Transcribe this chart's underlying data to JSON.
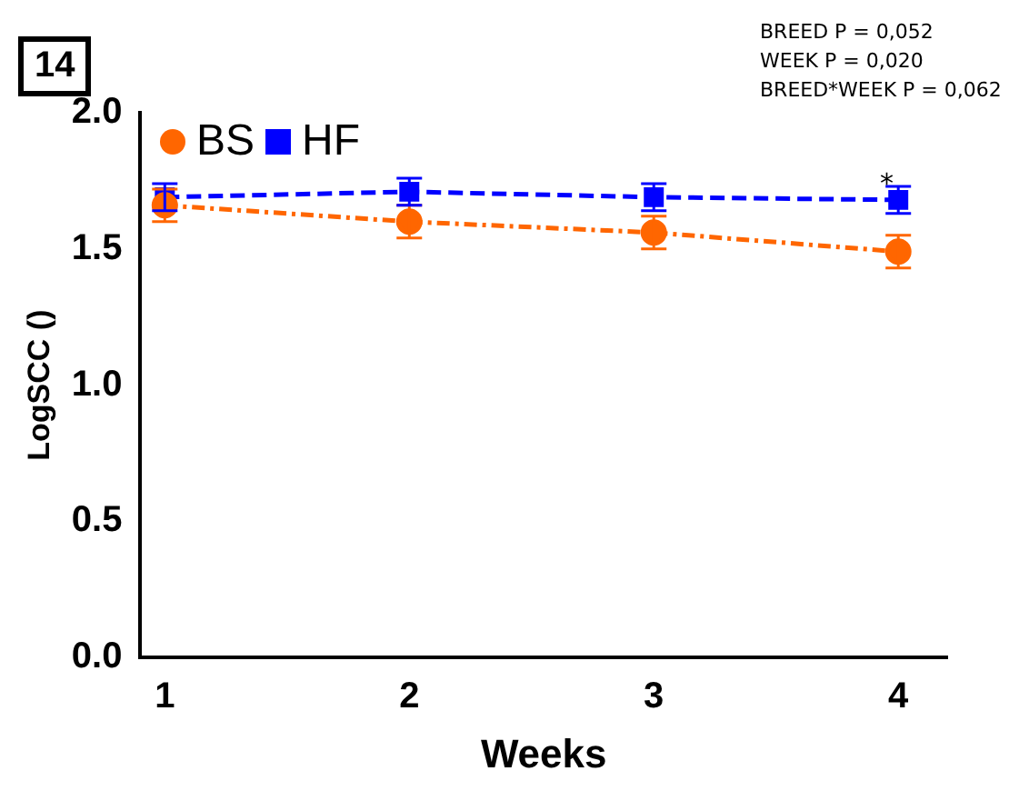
{
  "chart_data": {
    "type": "line",
    "xlabel": "Weeks",
    "ylabel": "LogSCC ()",
    "x": [
      1,
      2,
      3,
      4
    ],
    "xlim": [
      0.9,
      4.2
    ],
    "xticks": [
      1,
      2,
      3,
      4
    ],
    "ylim": [
      0,
      2.0
    ],
    "yticks": [
      {
        "value": 0,
        "label": "0.0"
      },
      {
        "value": 0.5,
        "label": "0.5"
      },
      {
        "value": 1,
        "label": "1.0"
      },
      {
        "value": 1.5,
        "label": "1.5"
      },
      {
        "value": 2,
        "label": "2.0"
      }
    ],
    "series": [
      {
        "name": "BS",
        "color": "#ff6600",
        "values": [
          1.66,
          1.6,
          1.56,
          1.49
        ],
        "errors": [
          0.06,
          0.06,
          0.06,
          0.06
        ],
        "marker": "circle",
        "line_style": "dotted"
      },
      {
        "name": "HF",
        "color": "#0000ff",
        "values": [
          1.69,
          1.71,
          1.69,
          1.68
        ],
        "errors": [
          0.05,
          0.05,
          0.05,
          0.05
        ],
        "marker": "square",
        "line_style": "dashed"
      }
    ],
    "legend": "top left",
    "grid": false,
    "annotations": [
      "14",
      "BREED P = 0,052",
      "WEEK P = 0,020",
      "BREED*WEEK P = 0,062",
      "*"
    ]
  }
}
